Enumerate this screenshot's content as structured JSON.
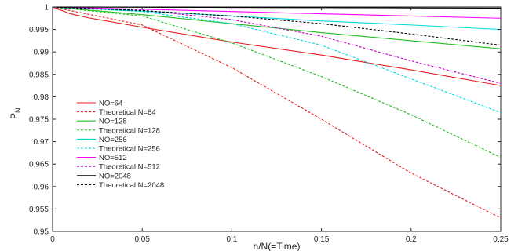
{
  "chart_data": {
    "type": "line",
    "title": "",
    "xlabel": "n/N(=Time)",
    "ylabel_main": "P",
    "ylabel_sub": "N",
    "xlim": [
      0,
      0.25
    ],
    "ylim": [
      0.95,
      1.0
    ],
    "xticks": [
      0,
      0.05,
      0.1,
      0.15,
      0.2,
      0.25
    ],
    "xtick_labels": [
      "0",
      "0.05",
      "0.1",
      "0.15",
      "0.2",
      "0.25"
    ],
    "yticks": [
      0.95,
      0.955,
      0.96,
      0.965,
      0.97,
      0.975,
      0.98,
      0.985,
      0.99,
      0.995,
      1.0
    ],
    "ytick_labels": [
      "0.95",
      "0.955",
      "0.96",
      "0.965",
      "0.97",
      "0.975",
      "0.98",
      "0.985",
      "0.99",
      "0.995",
      "1"
    ],
    "grid": false,
    "legend_position": "center-left",
    "series": [
      {
        "name": "NO=64",
        "color": "#e41a1c",
        "dash": "solid",
        "x": [
          0,
          0.01,
          0.02,
          0.05,
          0.1,
          0.15,
          0.2,
          0.25
        ],
        "y": [
          1.0,
          0.9985,
          0.9976,
          0.9955,
          0.9922,
          0.9893,
          0.986,
          0.9825
        ]
      },
      {
        "name": "Theoretical N=64",
        "color": "#e41a1c",
        "dash": "dashed",
        "x": [
          0,
          0.05,
          0.1,
          0.15,
          0.2,
          0.25
        ],
        "y": [
          1.0,
          0.996,
          0.9865,
          0.975,
          0.963,
          0.953
        ]
      },
      {
        "name": "NO=128",
        "color": "#1fbf1f",
        "dash": "solid",
        "x": [
          0,
          0.05,
          0.1,
          0.15,
          0.2,
          0.25
        ],
        "y": [
          1.0,
          0.9983,
          0.9963,
          0.9943,
          0.9925,
          0.9907
        ]
      },
      {
        "name": "Theoretical N=128",
        "color": "#1fbf1f",
        "dash": "dashed",
        "x": [
          0,
          0.05,
          0.1,
          0.15,
          0.2,
          0.25
        ],
        "y": [
          1.0,
          0.998,
          0.992,
          0.9845,
          0.976,
          0.9665
        ]
      },
      {
        "name": "NO=256",
        "color": "#00d8d8",
        "dash": "solid",
        "x": [
          0,
          0.05,
          0.1,
          0.15,
          0.2,
          0.25
        ],
        "y": [
          1.0,
          0.9991,
          0.998,
          0.9969,
          0.996,
          0.995
        ]
      },
      {
        "name": "Theoretical N=256",
        "color": "#00d8d8",
        "dash": "dashed",
        "x": [
          0,
          0.05,
          0.1,
          0.15,
          0.2,
          0.25
        ],
        "y": [
          1.0,
          0.999,
          0.9963,
          0.9915,
          0.984,
          0.9765
        ]
      },
      {
        "name": "NO=512",
        "color": "#ff00ff",
        "dash": "solid",
        "x": [
          0,
          0.05,
          0.1,
          0.15,
          0.2,
          0.25
        ],
        "y": [
          1.0,
          0.9995,
          0.999,
          0.9985,
          0.998,
          0.9975
        ]
      },
      {
        "name": "Theoretical N=512",
        "color": "#cc00cc",
        "dash": "dashed",
        "x": [
          0,
          0.05,
          0.1,
          0.15,
          0.2,
          0.25
        ],
        "y": [
          1.0,
          0.9993,
          0.9972,
          0.9935,
          0.988,
          0.983
        ]
      },
      {
        "name": "NO=2048",
        "color": "#000000",
        "dash": "solid",
        "x": [
          0,
          0.05,
          0.1,
          0.15,
          0.2,
          0.25
        ],
        "y": [
          1.0,
          0.99995,
          0.9999,
          0.99985,
          0.9998,
          0.99975
        ]
      },
      {
        "name": "Theoretical N=2048",
        "color": "#000000",
        "dash": "dashed",
        "x": [
          0,
          0.05,
          0.1,
          0.15,
          0.2,
          0.25
        ],
        "y": [
          1.0,
          0.9992,
          0.998,
          0.9963,
          0.994,
          0.9915
        ]
      }
    ]
  }
}
